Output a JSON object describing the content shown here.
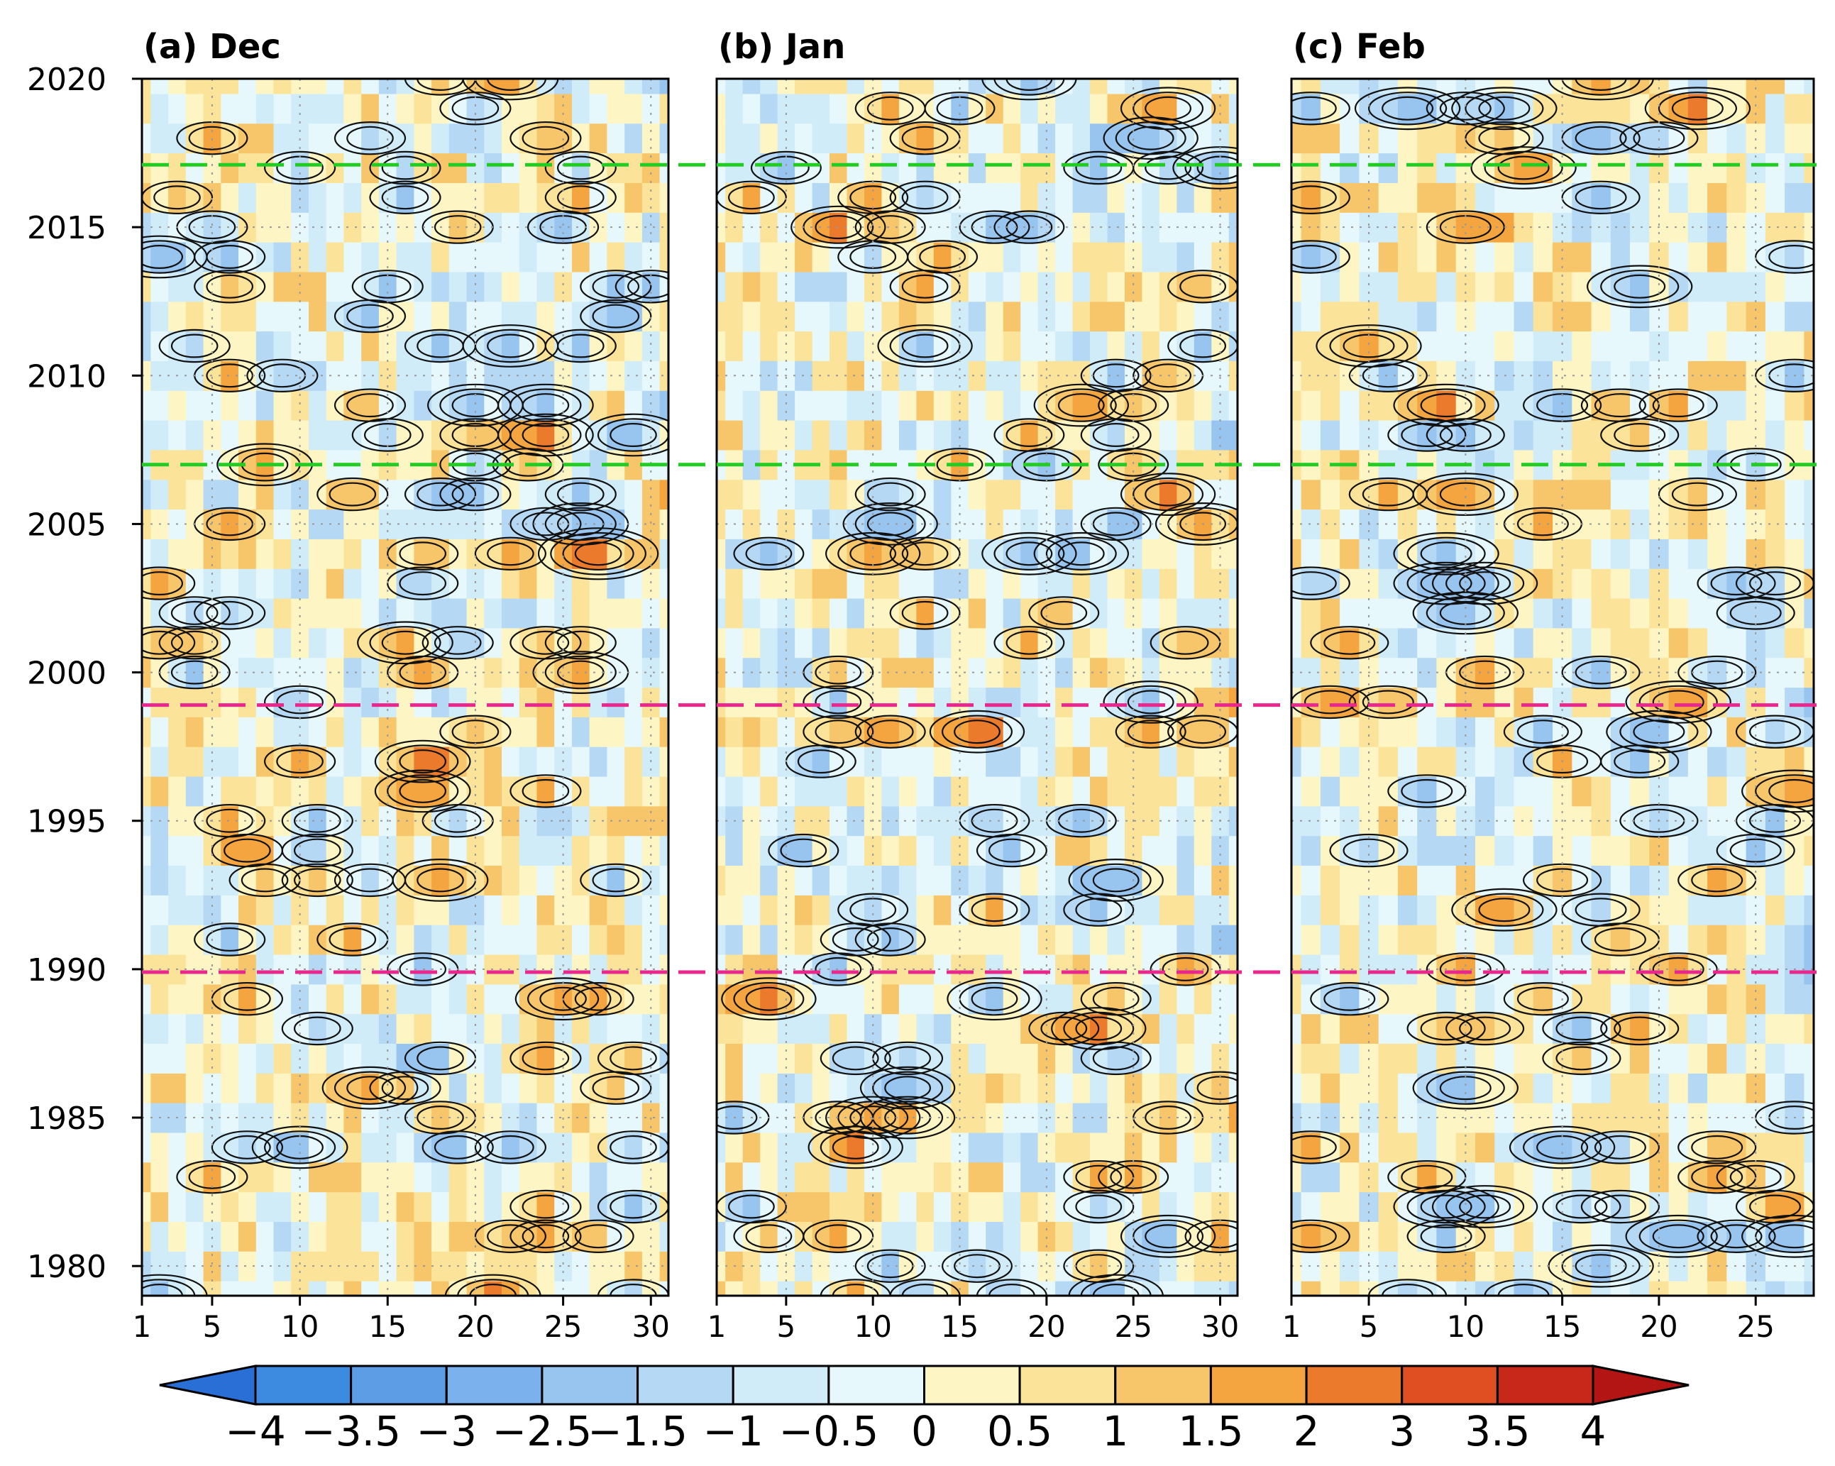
{
  "chart_data": {
    "type": "heatmap",
    "description_variable": "daily anomaly (shaded) with contours",
    "y_axis": {
      "range": [
        1979,
        2020
      ],
      "tick_labels": [
        "1980",
        "1985",
        "1990",
        "1995",
        "2000",
        "2005",
        "2010",
        "2015",
        "2020"
      ]
    },
    "reference_lines": [
      {
        "year": 2017.1,
        "color": "#22cc22",
        "style": "dashed"
      },
      {
        "year": 2007.0,
        "color": "#22cc22",
        "style": "dashed"
      },
      {
        "year": 1998.9,
        "color": "#e8288c",
        "style": "dashed"
      },
      {
        "year": 1989.9,
        "color": "#e8288c",
        "style": "dashed"
      }
    ],
    "panels": [
      {
        "title": "(a)  Dec",
        "days": 31,
        "x_tick_labels": [
          "1",
          "5",
          "10",
          "15",
          "20",
          "25",
          "30"
        ]
      },
      {
        "title": "(b)  Jan",
        "days": 31,
        "x_tick_labels": [
          "1",
          "5",
          "10",
          "15",
          "20",
          "25",
          "30"
        ]
      },
      {
        "title": "(c)  Feb",
        "days": 28,
        "x_tick_labels": [
          "1",
          "5",
          "10",
          "15",
          "20",
          "25"
        ]
      }
    ],
    "colorbar": {
      "tick_labels": [
        "−4",
        "−3.5",
        "−3",
        "−2.5",
        "−1.5",
        "−1",
        "−0.5",
        "0",
        "0.5",
        "1",
        "1.5",
        "2",
        "3",
        "3.5",
        "4"
      ],
      "bins": [
        "−4 to −3.5",
        "−3.5 to −3",
        "−3 to −2.5",
        "−2.5 to −1.5",
        "−1.5 to −1",
        "−1 to −0.5",
        "−0.5 to 0",
        "0 to 0.5",
        "0.5 to 1",
        "1 to 1.5",
        "1.5 to 2",
        "2 to 3",
        "3 to 3.5",
        "3.5 to 4"
      ],
      "colors": [
        "#3d8be0",
        "#5c9de6",
        "#7bb1ec",
        "#98c4f0",
        "#b5d8f4",
        "#d0ecf8",
        "#e6f8fc",
        "#fdf6c4",
        "#fbe39a",
        "#f8c66a",
        "#f4a53f",
        "#ec7a2c",
        "#df4f22",
        "#c8281a"
      ],
      "below_color": "#2a6fd6",
      "above_color": "#b31414",
      "extend": "both"
    },
    "colors": {
      "contour": "#111111",
      "grid": "#999999"
    }
  }
}
